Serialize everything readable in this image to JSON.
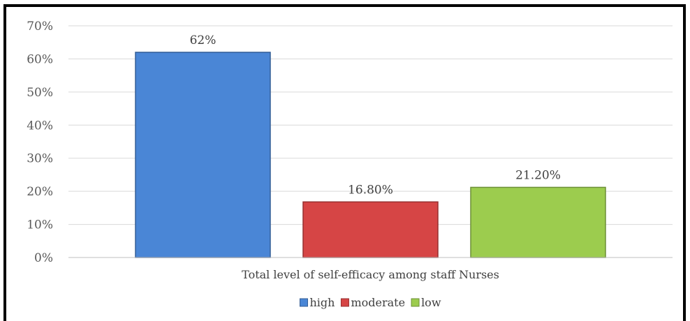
{
  "chart_data": {
    "type": "bar",
    "categories": [
      "Total level of self-efficacy among staff Nurses"
    ],
    "series": [
      {
        "name": "high",
        "values": [
          62
        ],
        "label": "62%",
        "color": "#4a86d6"
      },
      {
        "name": "moderate",
        "values": [
          16.8
        ],
        "label": "16.80%",
        "color": "#d64545"
      },
      {
        "name": "low",
        "values": [
          21.2
        ],
        "label": "21.20%",
        "color": "#9ccc4e"
      }
    ],
    "ylim": [
      0,
      70
    ],
    "yticks": [
      "0%",
      "10%",
      "20%",
      "30%",
      "40%",
      "50%",
      "60%",
      "70%"
    ],
    "grid": true,
    "legend": "bottom"
  }
}
